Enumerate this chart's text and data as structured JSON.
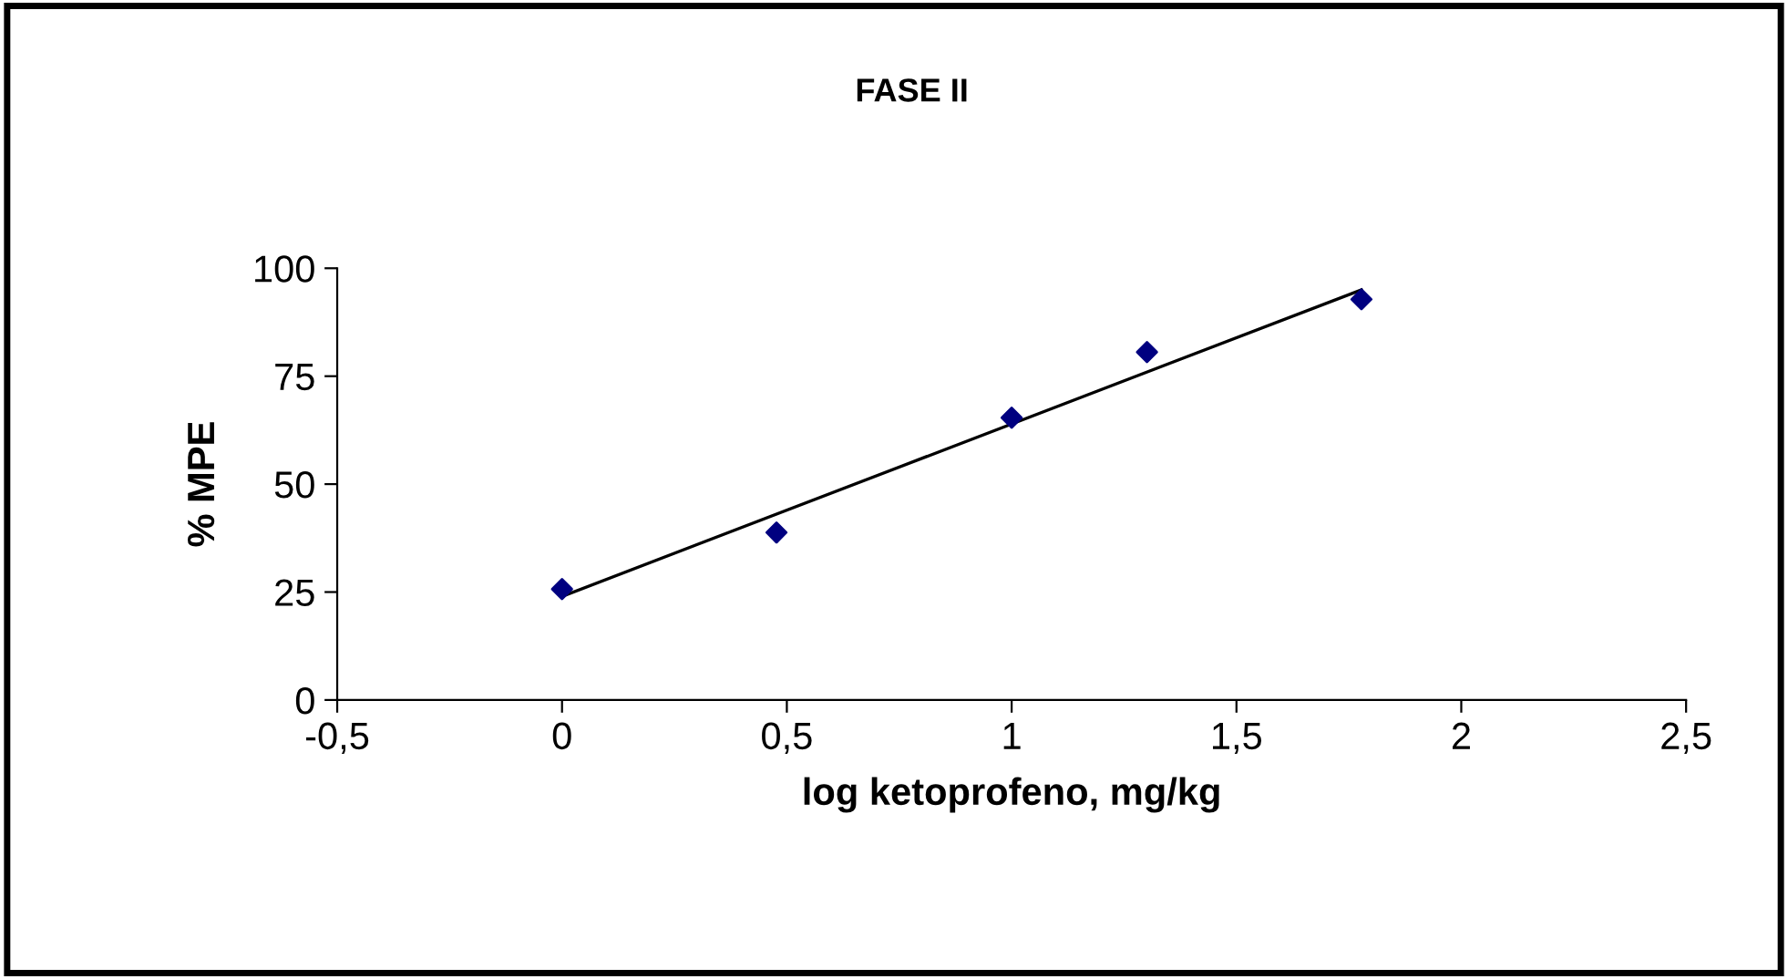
{
  "chart_data": {
    "type": "scatter",
    "title": "FASE II",
    "xlabel": "log ketoprofeno, mg/kg",
    "ylabel": "% MPE",
    "xlim": [
      -0.5,
      2.5
    ],
    "xticks": [
      {
        "value": -0.5,
        "label": "-0,5"
      },
      0,
      {
        "value": 0.5,
        "label": "0,5"
      },
      1,
      {
        "value": 1.5,
        "label": "1,5"
      },
      2,
      {
        "value": 2.5,
        "label": "2,5"
      }
    ],
    "ylim": [
      0,
      100
    ],
    "yticks": [
      0,
      25,
      50,
      75,
      100
    ],
    "grid": false,
    "legend": false,
    "marker": "diamond",
    "x": [
      0,
      0.477,
      1,
      1.301,
      1.778
    ],
    "series": [
      {
        "color": "#000080",
        "values": [
          25.7,
          38.8,
          65.4,
          80.6,
          92.8
        ]
      },
      {
        "type": "line",
        "color": "#000000",
        "x": [
          0,
          1.778
        ],
        "values": [
          24,
          95
        ],
        "marker": "none",
        "line_style": "solid"
      }
    ]
  }
}
